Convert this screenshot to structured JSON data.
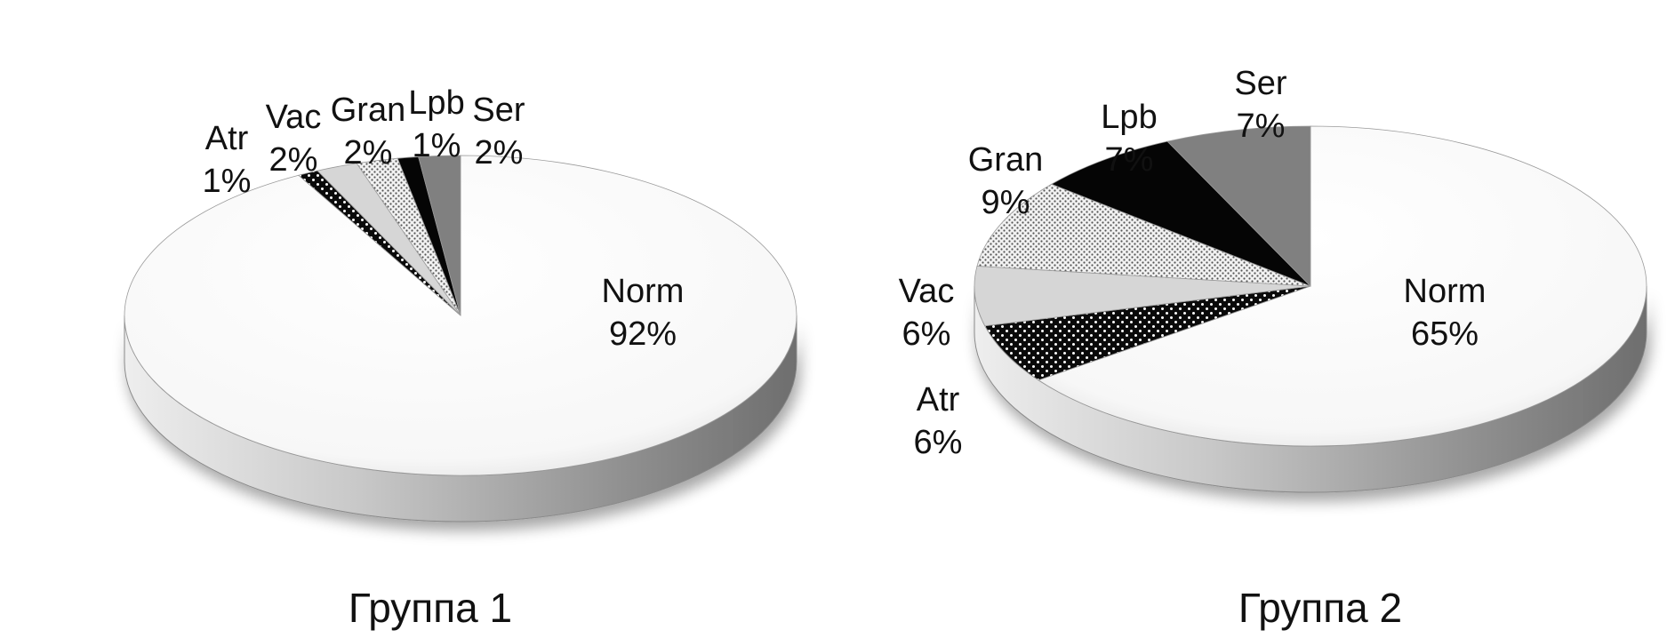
{
  "chart_data": [
    {
      "type": "pie",
      "title": "Группа 1",
      "slices": [
        {
          "category": "Norm",
          "value": 92,
          "label": "92%",
          "fill": "white"
        },
        {
          "category": "Atr",
          "value": 1,
          "label": "1%",
          "fill": "dots-black"
        },
        {
          "category": "Vac",
          "value": 2,
          "label": "2%",
          "fill": "lightgray"
        },
        {
          "category": "Gran",
          "value": 2,
          "label": "2%",
          "fill": "dots-gray"
        },
        {
          "category": "Lpb",
          "value": 1,
          "label": "1%",
          "fill": "black"
        },
        {
          "category": "Ser",
          "value": 2,
          "label": "2%",
          "fill": "gray"
        }
      ]
    },
    {
      "type": "pie",
      "title": "Группа 2",
      "slices": [
        {
          "category": "Norm",
          "value": 65,
          "label": "65%",
          "fill": "white"
        },
        {
          "category": "Atr",
          "value": 6,
          "label": "6%",
          "fill": "dots-black"
        },
        {
          "category": "Vac",
          "value": 6,
          "label": "6%",
          "fill": "lightgray"
        },
        {
          "category": "Gran",
          "value": 9,
          "label": "9%",
          "fill": "dots-gray"
        },
        {
          "category": "Lpb",
          "value": 7,
          "label": "7%",
          "fill": "black"
        },
        {
          "category": "Ser",
          "value": 7,
          "label": "7%",
          "fill": "gray"
        }
      ]
    }
  ],
  "colors": {
    "white": "#fafafa",
    "lightgray": "#d6d6d6",
    "gray": "#808080",
    "black": "#050505",
    "edge": "#8a8a8a"
  }
}
